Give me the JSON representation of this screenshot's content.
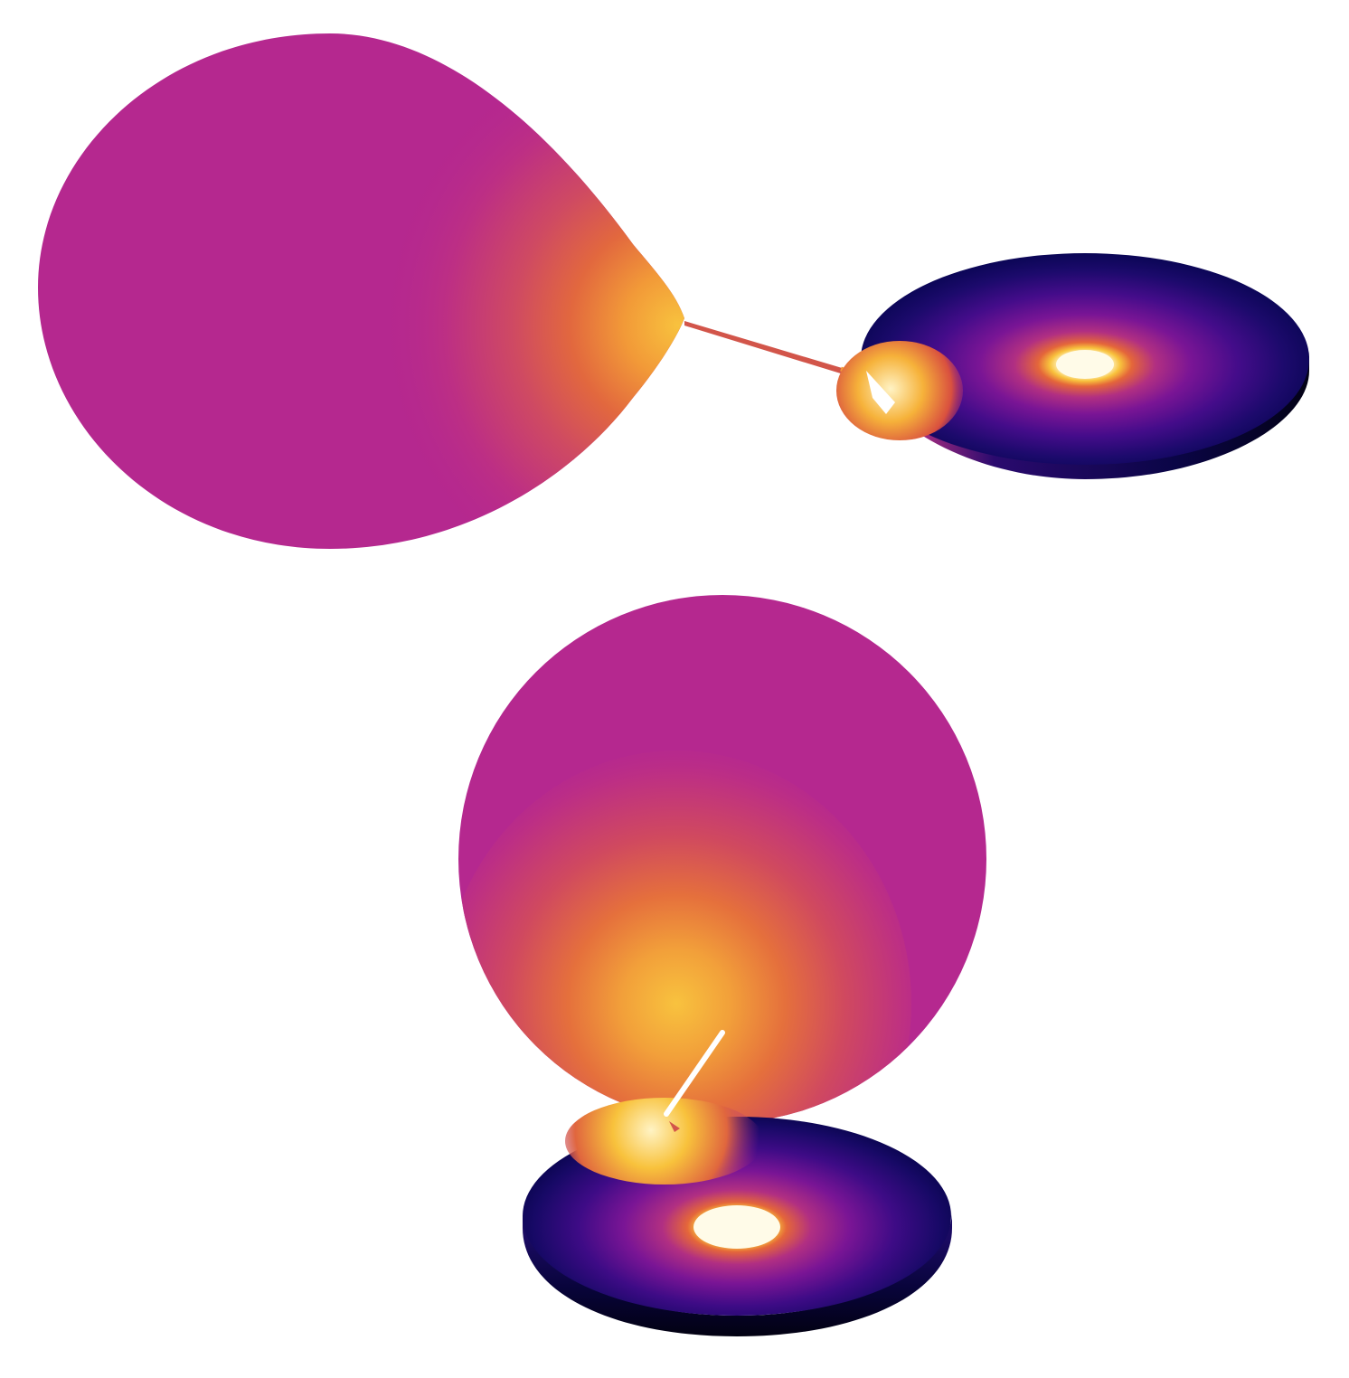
{
  "views": [
    {
      "id": "view-top",
      "orientation": "side"
    },
    {
      "id": "view-bottom",
      "orientation": "inclined"
    }
  ],
  "colors": {
    "background": "#ffffff",
    "star_base": "#b5288f",
    "heated_1": "#c43a7a",
    "heated_2": "#d24e5e",
    "heated_3": "#e0663f",
    "heated_4": "#ee8a3a",
    "heated_5": "#f6b640",
    "hot_core": "#fff6d6",
    "disk_outer": "#0d0860",
    "disk_mid": "#4a0c8c",
    "disk_inner": "#9a1f8e",
    "disk_rim_dark": "#05031c",
    "stream": "#d2554a"
  },
  "colormap": "plasma",
  "icons": [
    "donor-star-icon",
    "accretion-disk-icon",
    "hot-spot-icon",
    "mass-stream-icon",
    "white-dwarf-icon"
  ]
}
